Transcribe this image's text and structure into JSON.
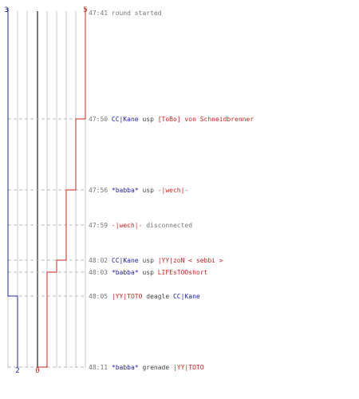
{
  "colors": {
    "blue_team": "#2222aa",
    "red_team": "#cc2222",
    "time": "#777777",
    "neutral": "#444444",
    "grid": "#c8c8c8"
  },
  "scores": {
    "blue_start": "3",
    "red_start": "5",
    "blue_end": "2",
    "red_end": "0"
  },
  "events": [
    {
      "time": "47:41",
      "seg": [
        {
          "t": "round started",
          "c": "time"
        }
      ]
    },
    {
      "time": "47:50",
      "seg": [
        {
          "t": "CC|Kane",
          "c": "blue"
        },
        {
          "t": " usp ",
          "c": "neutral"
        },
        {
          "t": "[ToBo] von Schneidbrenner",
          "c": "red"
        }
      ]
    },
    {
      "time": "47:56",
      "seg": [
        {
          "t": "*babba*",
          "c": "blue"
        },
        {
          "t": " usp ",
          "c": "neutral"
        },
        {
          "t": "-|wech|-",
          "c": "red"
        }
      ]
    },
    {
      "time": "47:59",
      "seg": [
        {
          "t": "-|wech|-",
          "c": "red"
        },
        {
          "t": " disconnected",
          "c": "time"
        }
      ]
    },
    {
      "time": "48:02",
      "seg": [
        {
          "t": "CC|Kane",
          "c": "blue"
        },
        {
          "t": " usp ",
          "c": "neutral"
        },
        {
          "t": "|YY|zoN < sebbi >",
          "c": "red"
        }
      ]
    },
    {
      "time": "48:03",
      "seg": [
        {
          "t": "*babba*",
          "c": "blue"
        },
        {
          "t": " usp ",
          "c": "neutral"
        },
        {
          "t": "LIFEsTOOshort",
          "c": "red"
        }
      ]
    },
    {
      "time": "48:05",
      "seg": [
        {
          "t": "|YY|TOTO",
          "c": "red"
        },
        {
          "t": " deagle ",
          "c": "neutral"
        },
        {
          "t": "CC|Kane",
          "c": "blue"
        }
      ]
    },
    {
      "time": "48:11",
      "seg": [
        {
          "t": "*babba*",
          "c": "blue"
        },
        {
          "t": " grenade ",
          "c": "neutral"
        },
        {
          "t": "|YY|TOTO",
          "c": "red"
        }
      ]
    }
  ]
}
